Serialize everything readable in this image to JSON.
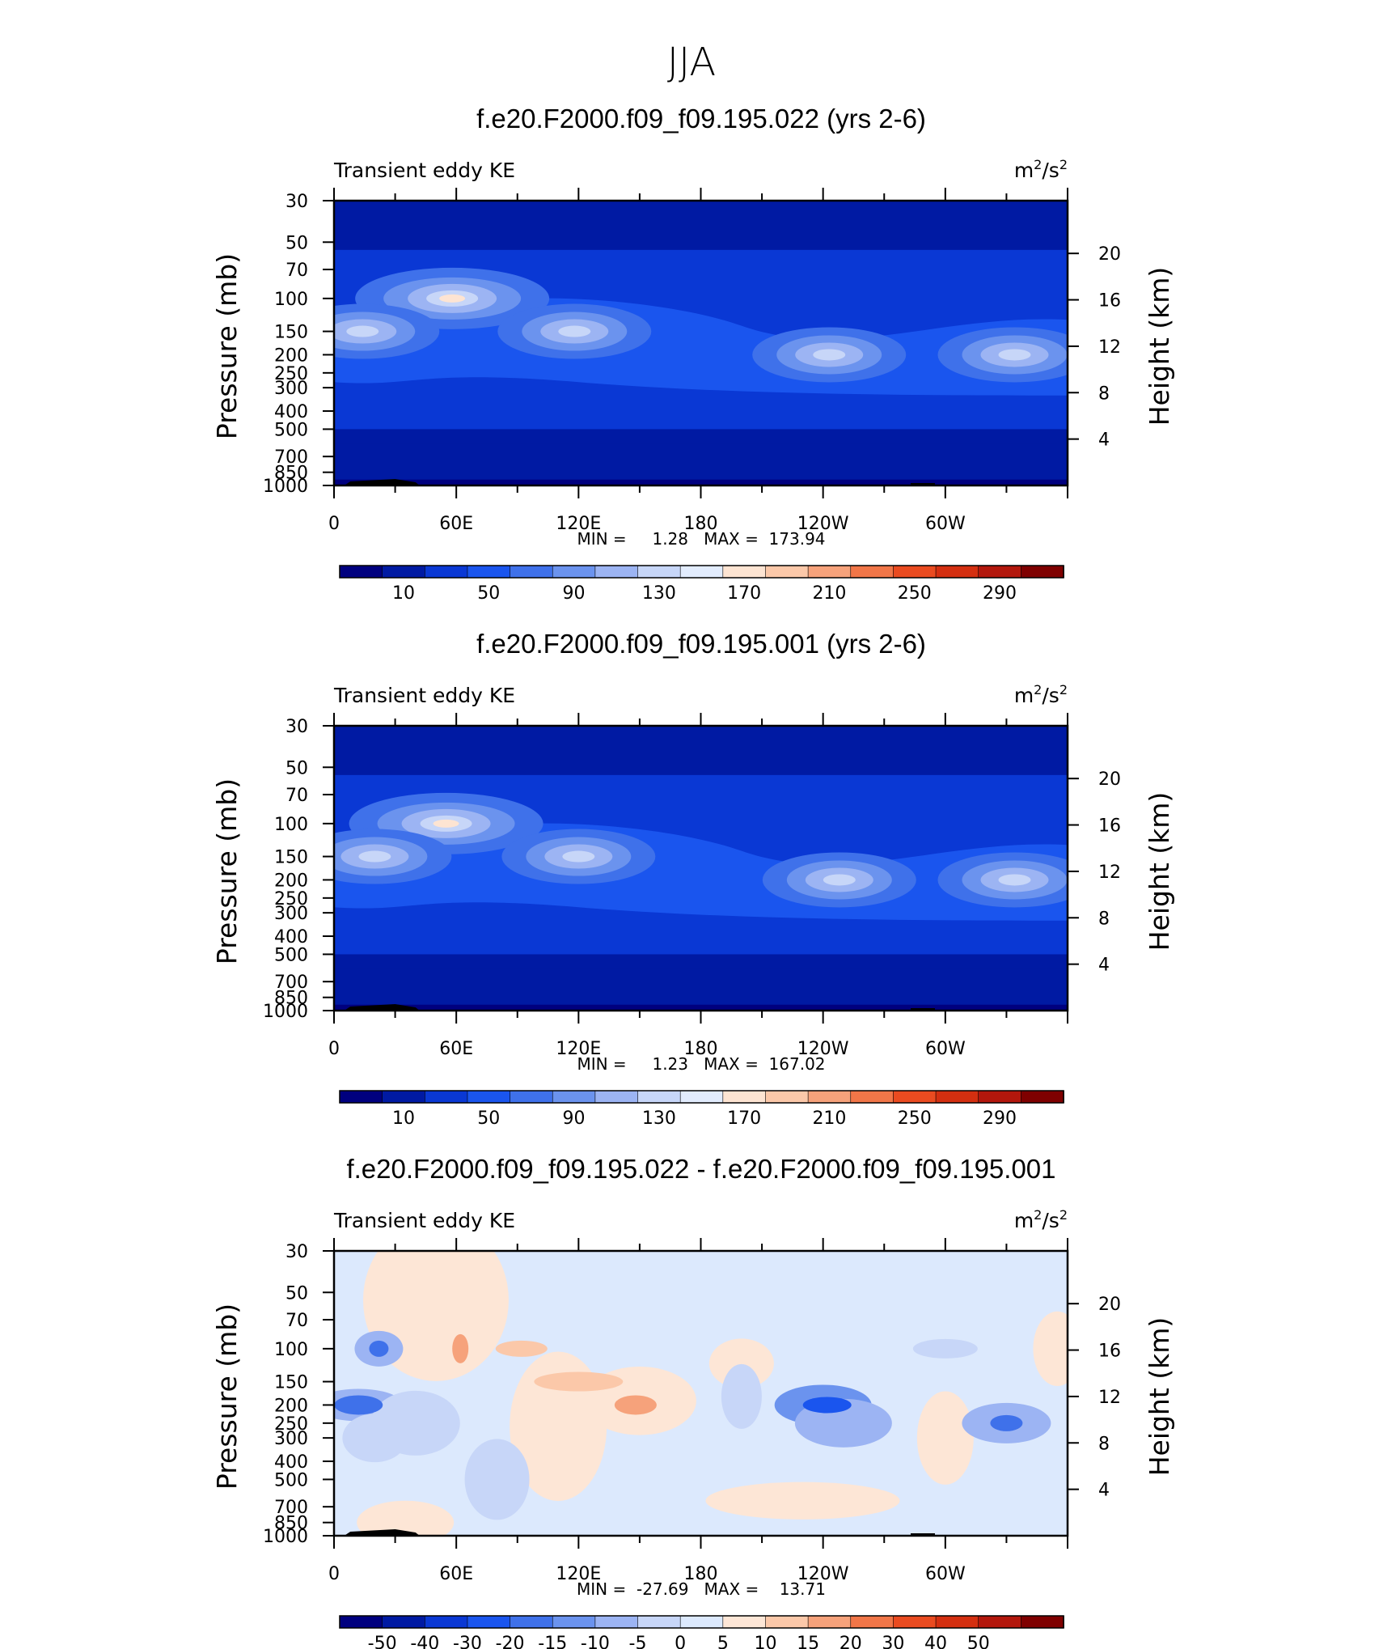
{
  "main_title": "JJA",
  "colorbar_full": {
    "colors": [
      "#00007f",
      "#001aa3",
      "#0a38d4",
      "#1a55ee",
      "#3f71ea",
      "#6b93ee",
      "#9cb4f3",
      "#c7d6f8",
      "#e2ecfd",
      "#fde4d2",
      "#fbc8a9",
      "#f6a27b",
      "#f17648",
      "#ea4b20",
      "#d42f10",
      "#b3170c",
      "#7f0000"
    ],
    "labels": [
      "10",
      "50",
      "90",
      "130",
      "170",
      "210",
      "250",
      "290"
    ]
  },
  "colorbar_diff": {
    "colors": [
      "#00007f",
      "#001aa3",
      "#0a38d4",
      "#1a55ee",
      "#3f71ea",
      "#6b93ee",
      "#9cb4f3",
      "#c7d6f8",
      "#dce9fd",
      "#fde6d6",
      "#fbc8a9",
      "#f6a27b",
      "#f17648",
      "#ea4b20",
      "#d42f10",
      "#b3170c",
      "#7f0000"
    ],
    "labels": [
      "-50",
      "-40",
      "-30",
      "-20",
      "-15",
      "-10",
      "-5",
      "0",
      "5",
      "10",
      "15",
      "20",
      "30",
      "40",
      "50"
    ]
  },
  "panels": [
    {
      "title": "f.e20.F2000.f09_f09.195.022 (yrs 2-6)",
      "left_label": "Transient eddy KE",
      "units_base": "m",
      "units_exp1": "2",
      "units_mid": "/s",
      "units_exp2": "2",
      "ylabel": "Pressure (mb)",
      "y2label": "Height (km)",
      "minmax": "MIN =     1.28   MAX =  173.94",
      "kind": "full"
    },
    {
      "title": "f.e20.F2000.f09_f09.195.001 (yrs 2-6)",
      "left_label": "Transient eddy KE",
      "units_base": "m",
      "units_exp1": "2",
      "units_mid": "/s",
      "units_exp2": "2",
      "ylabel": "Pressure (mb)",
      "y2label": "Height (km)",
      "minmax": "MIN =     1.23   MAX =  167.02",
      "kind": "full"
    },
    {
      "title": "f.e20.F2000.f09_f09.195.022 - f.e20.F2000.f09_f09.195.001",
      "left_label": "Transient eddy KE",
      "units_base": "m",
      "units_exp1": "2",
      "units_mid": "/s",
      "units_exp2": "2",
      "ylabel": "Pressure (mb)",
      "y2label": "Height (km)",
      "minmax": "MIN =  -27.69   MAX =    13.71",
      "kind": "diff"
    }
  ],
  "chart_data": [
    {
      "type": "heatmap",
      "title": "f.e20.F2000.f09_f09.195.022 (yrs 2-6)",
      "variable": "Transient eddy KE",
      "units": "m2/s2",
      "xlabel": "",
      "ylabel": "Pressure (mb)",
      "y2label": "Height (km)",
      "x_ticks": [
        "0",
        "60E",
        "120E",
        "180",
        "120W",
        "60W"
      ],
      "y_ticks": [
        "30",
        "50",
        "70",
        "100",
        "150",
        "200",
        "250",
        "300",
        "400",
        "500",
        "700",
        "850",
        "1000"
      ],
      "y2_ticks": [
        "4",
        "8",
        "12",
        "16",
        "20"
      ],
      "ylim": [
        1000,
        30
      ],
      "min": 1.28,
      "max": 173.94,
      "maxima": [
        {
          "lon": 58,
          "pressure_mb": 100,
          "value": 173.94
        },
        {
          "lon": 118,
          "pressure_mb": 150,
          "value": 140
        },
        {
          "lon": 243,
          "pressure_mb": 200,
          "value": 140
        },
        {
          "lon": 334,
          "pressure_mb": 200,
          "value": 140
        },
        {
          "lon": 14,
          "pressure_mb": 150,
          "value": 135
        }
      ]
    },
    {
      "type": "heatmap",
      "title": "f.e20.F2000.f09_f09.195.001 (yrs 2-6)",
      "variable": "Transient eddy KE",
      "units": "m2/s2",
      "xlabel": "",
      "ylabel": "Pressure (mb)",
      "y2label": "Height (km)",
      "x_ticks": [
        "0",
        "60E",
        "120E",
        "180",
        "120W",
        "60W"
      ],
      "y_ticks": [
        "30",
        "50",
        "70",
        "100",
        "150",
        "200",
        "250",
        "300",
        "400",
        "500",
        "700",
        "850",
        "1000"
      ],
      "y2_ticks": [
        "4",
        "8",
        "12",
        "16",
        "20"
      ],
      "ylim": [
        1000,
        30
      ],
      "min": 1.23,
      "max": 167.02,
      "maxima": [
        {
          "lon": 55,
          "pressure_mb": 100,
          "value": 167.02
        },
        {
          "lon": 120,
          "pressure_mb": 150,
          "value": 140
        },
        {
          "lon": 248,
          "pressure_mb": 200,
          "value": 150
        },
        {
          "lon": 334,
          "pressure_mb": 200,
          "value": 140
        },
        {
          "lon": 20,
          "pressure_mb": 150,
          "value": 130
        }
      ]
    },
    {
      "type": "heatmap",
      "title": "f.e20.F2000.f09_f09.195.022 - f.e20.F2000.f09_f09.195.001",
      "variable": "Transient eddy KE",
      "units": "m2/s2",
      "xlabel": "",
      "ylabel": "Pressure (mb)",
      "y2label": "Height (km)",
      "x_ticks": [
        "0",
        "60E",
        "120E",
        "180",
        "120W",
        "60W"
      ],
      "y_ticks": [
        "30",
        "50",
        "70",
        "100",
        "150",
        "200",
        "250",
        "300",
        "400",
        "500",
        "700",
        "850",
        "1000"
      ],
      "y2_ticks": [
        "4",
        "8",
        "12",
        "16",
        "20"
      ],
      "ylim": [
        1000,
        30
      ],
      "min": -27.69,
      "max": 13.71,
      "maxima": [
        {
          "lon": 240,
          "pressure_mb": 200,
          "value": -27.69
        },
        {
          "lon": 12,
          "pressure_mb": 200,
          "value": -22
        },
        {
          "lon": 22,
          "pressure_mb": 100,
          "value": -20
        },
        {
          "lon": 330,
          "pressure_mb": 250,
          "value": -15
        },
        {
          "lon": 148,
          "pressure_mb": 200,
          "value": 13.71
        },
        {
          "lon": 62,
          "pressure_mb": 100,
          "value": 10
        },
        {
          "lon": 92,
          "pressure_mb": 100,
          "value": 9
        }
      ]
    }
  ]
}
